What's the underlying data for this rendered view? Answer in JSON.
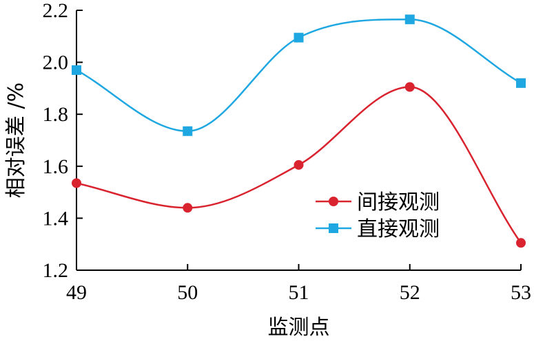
{
  "chart_data": {
    "type": "line",
    "xlabel": "监测点",
    "ylabel": "相对误差 /%",
    "x": [
      49,
      50,
      51,
      52,
      53
    ],
    "xlim": [
      49,
      53
    ],
    "ylim": [
      1.2,
      2.2
    ],
    "y_ticks": [
      1.2,
      1.4,
      1.6,
      1.8,
      2.0,
      2.2
    ],
    "y_tick_labels": [
      "1.2",
      "1.4",
      "1.6",
      "1.8",
      "2.0",
      "2.2"
    ],
    "x_tick_labels": [
      "49",
      "50",
      "51",
      "52",
      "53"
    ],
    "grid": false,
    "smooth": true,
    "legend_position": "center-right",
    "series": [
      {
        "name": "间接观测",
        "color": "#d9232e",
        "marker": "circle",
        "values": [
          1.535,
          1.44,
          1.605,
          1.905,
          1.305
        ]
      },
      {
        "name": "直接观测",
        "color": "#1ea7e1",
        "marker": "square",
        "values": [
          1.97,
          1.735,
          2.095,
          2.165,
          1.92
        ]
      }
    ]
  }
}
